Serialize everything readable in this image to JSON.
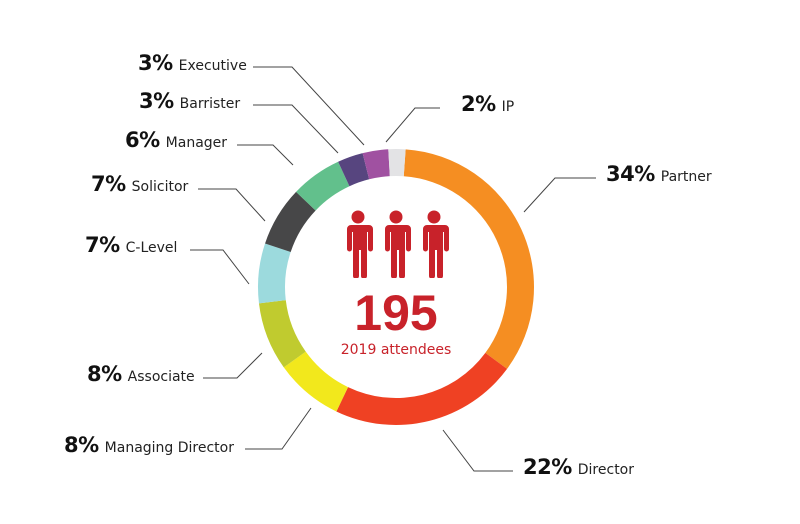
{
  "chart_data": {
    "type": "pie",
    "variant": "donut",
    "title": "",
    "center_total": "195",
    "center_caption": "2019 attendees",
    "categories": [
      "Partner",
      "Director",
      "Managing Director",
      "Associate",
      "C-Level",
      "Solicitor",
      "Manager",
      "Barrister",
      "Executive",
      "IP"
    ],
    "values": [
      34,
      22,
      8,
      8,
      7,
      7,
      6,
      3,
      3,
      2
    ],
    "colors": [
      "#f58e22",
      "#ef4123",
      "#f2e81c",
      "#c0cb2f",
      "#9cdadd",
      "#474748",
      "#62c08c",
      "#57457f",
      "#a051a1",
      "#e3e3e5"
    ],
    "unit": "%",
    "legend_position": "callouts"
  },
  "center": {
    "total": "195",
    "caption": "2019 attendees",
    "icon": "people-icon",
    "accent_color": "#c8222a"
  },
  "labels": [
    {
      "pct": "34%",
      "name": "Partner"
    },
    {
      "pct": "22%",
      "name": "Director"
    },
    {
      "pct": "8%",
      "name": "Managing Director"
    },
    {
      "pct": "8%",
      "name": "Associate"
    },
    {
      "pct": "7%",
      "name": "C-Level"
    },
    {
      "pct": "7%",
      "name": "Solicitor"
    },
    {
      "pct": "6%",
      "name": "Manager"
    },
    {
      "pct": "3%",
      "name": "Barrister"
    },
    {
      "pct": "3%",
      "name": "Executive"
    },
    {
      "pct": "2%",
      "name": "IP"
    }
  ]
}
